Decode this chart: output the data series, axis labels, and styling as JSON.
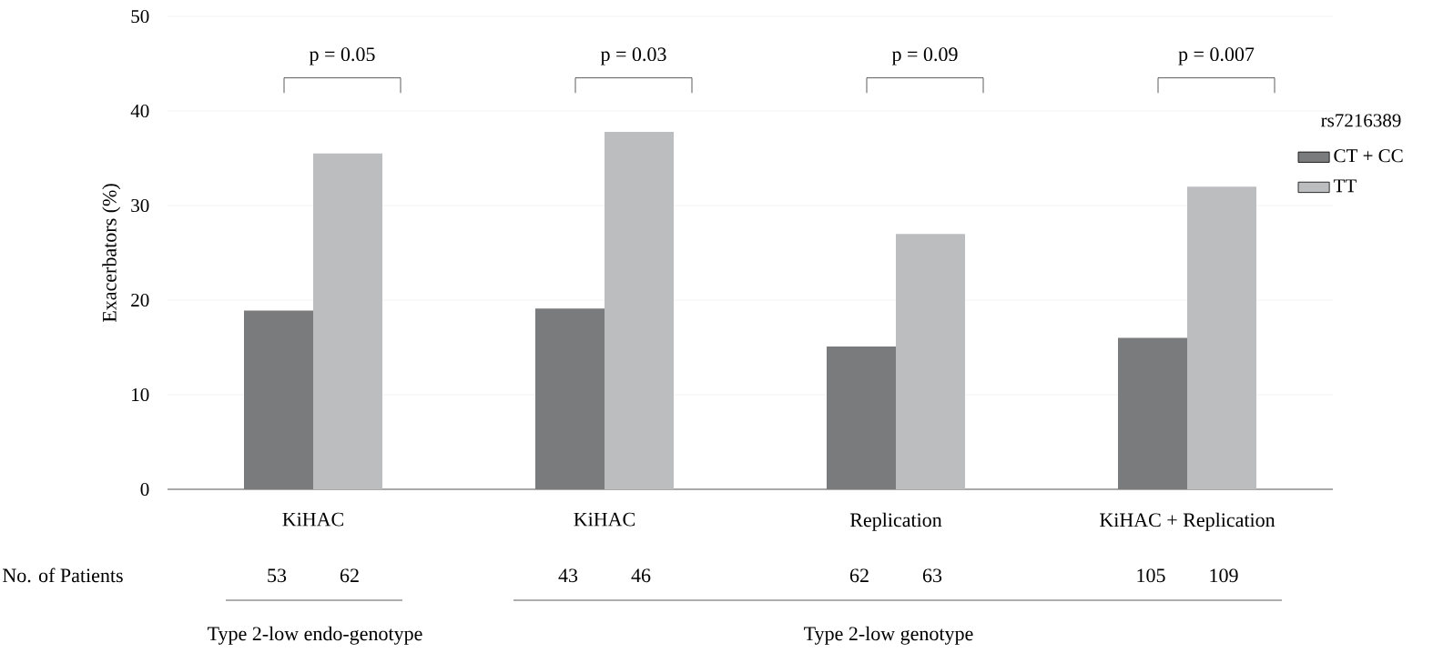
{
  "chart_data": {
    "type": "bar",
    "ylabel": "Exacerbators (%)",
    "legend_title": "rs7216389",
    "categories": [
      "KiHAC",
      "KiHAC",
      "Replication",
      "KiHAC + Replication"
    ],
    "series": [
      {
        "name": "CT + CC",
        "color": "#7a7b7d",
        "values": [
          18.9,
          19.1,
          15.1,
          16.0
        ]
      },
      {
        "name": "TT",
        "color": "#bcbdbf",
        "values": [
          35.5,
          37.8,
          27.0,
          32.0
        ]
      }
    ],
    "ylim": [
      0,
      50
    ],
    "yticks": [
      0,
      10,
      20,
      30,
      40,
      50
    ],
    "grid": "y",
    "legend": "right",
    "annotations": [
      "p = 0.05",
      "p = 0.03",
      "p = 0.09",
      "p = 0.007",
      "No. of Patients",
      "53",
      "62",
      "43",
      "46",
      "62",
      "63",
      "105",
      "109",
      "Type 2-low endo-genotype",
      "Type 2-low genotype"
    ]
  }
}
